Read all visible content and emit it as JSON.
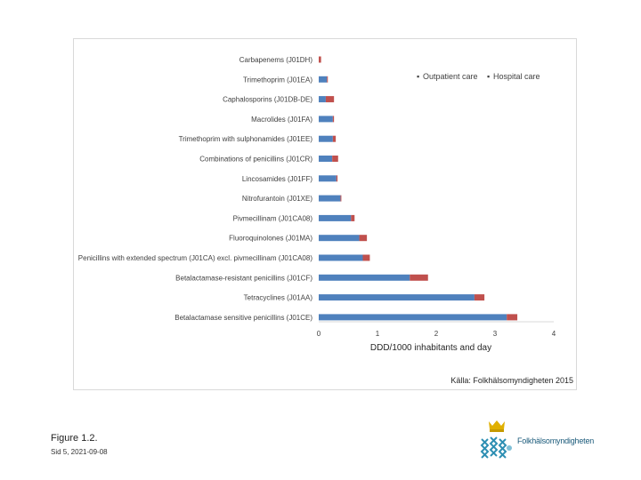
{
  "chart_data": {
    "type": "bar",
    "orientation": "horizontal",
    "stacked": true,
    "categories": [
      "Carbapenems (J01DH)",
      "Trimethoprim (J01EA)",
      "Caphalosporins (J01DB-DE)",
      "Macrolides (J01FA)",
      "Trimethoprim with sulphonamides (J01EE)",
      "Combinations of penicillins (J01CR)",
      "Lincosamides (J01FF)",
      "Nitrofurantoin (J01XE)",
      "Pivmecillinam (J01CA08)",
      "Fluoroquinolones (J01MA)",
      "Penicillins with extended spectrum (J01CA) excl. pivmecillinam (J01CA08)",
      "Betalactamase-resistant penicillins (J01CF)",
      "Tetracyclines (J01AA)",
      "Betalactamase sensitive penicillins (J01CE)"
    ],
    "series": [
      {
        "name": "Outpatient care",
        "color": "#4f81bd",
        "values": [
          0.0,
          0.14,
          0.12,
          0.24,
          0.24,
          0.23,
          0.3,
          0.37,
          0.55,
          0.69,
          0.75,
          1.55,
          2.65,
          3.2
        ]
      },
      {
        "name": "Hospital care",
        "color": "#c0504d",
        "values": [
          0.04,
          0.01,
          0.14,
          0.02,
          0.05,
          0.1,
          0.02,
          0.01,
          0.06,
          0.13,
          0.12,
          0.31,
          0.17,
          0.18
        ]
      }
    ],
    "xlabel": "DDD/1000 inhabitants and day",
    "xlim": [
      0,
      4
    ],
    "xticks": [
      "0",
      "1",
      "2",
      "3",
      "4"
    ],
    "legend_position": "top-right",
    "source": "Källa: Folkhälsomyndigheten 2015"
  },
  "caption": {
    "figure": "Figure 1.2.",
    "page": "Sid 5, 2021-09-08"
  },
  "logo": {
    "text": "Folkhälsomyndigheten"
  }
}
